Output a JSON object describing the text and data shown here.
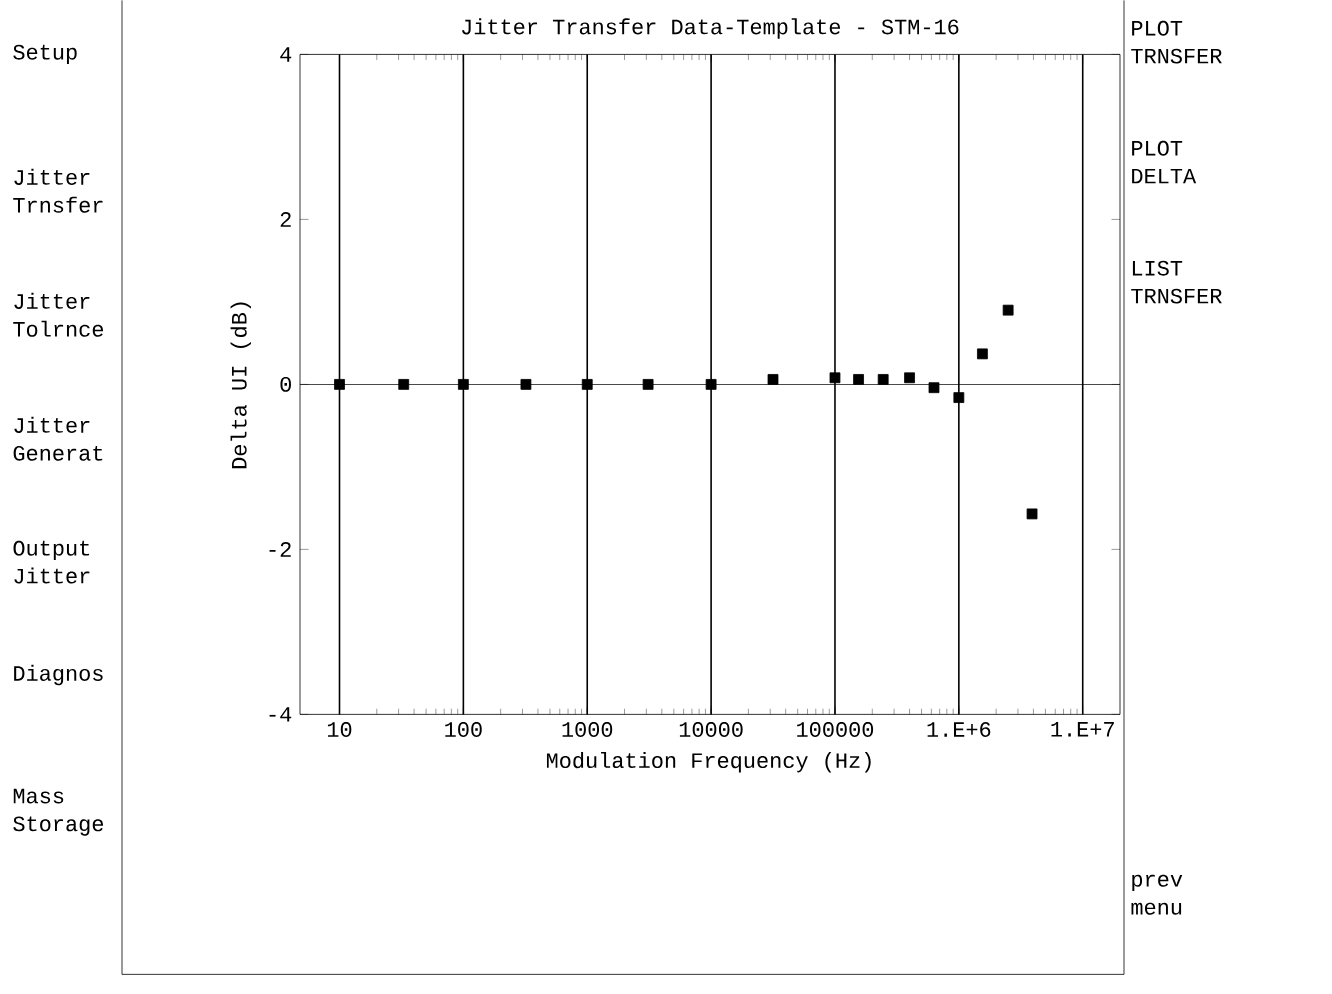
{
  "chart_data": {
    "type": "scatter",
    "title": "Jitter Transfer Data-Template - STM-16",
    "xlabel": "Modulation Frequency (Hz)",
    "ylabel": "Delta UI (dB)",
    "log": "x",
    "xlim": [
      4.8,
      20000000
    ],
    "ylim": [
      -4,
      4
    ],
    "xticks": [
      10,
      100,
      1000,
      10000,
      100000,
      {
        "value": 1000000,
        "label": "1.E+6"
      },
      {
        "value": 10000000,
        "label": "1.E+7"
      }
    ],
    "yticks": [
      -4,
      -2,
      0,
      2,
      4
    ],
    "grid": "x",
    "marker": "square",
    "ref_lines": [
      {
        "axis": "y",
        "value": 0,
        "label": null
      }
    ],
    "series": [
      {
        "color": "#000000",
        "x": [
          10,
          33,
          100,
          320,
          1000,
          3100,
          10000,
          31600,
          100000,
          155000,
          245000,
          400000,
          630000,
          1000000,
          1550000,
          2500000,
          3900000
        ],
        "values": [
          0,
          0,
          0,
          0,
          0,
          0,
          0,
          0.06,
          0.08,
          0.06,
          0.06,
          0.08,
          -0.04,
          -0.16,
          0.37,
          0.9,
          -1.57
        ]
      }
    ],
    "annotations": [
      "Setup",
      "Jitter Trnsfer",
      "Jitter Tolrnce",
      "Jitter Generat",
      "Output Jitter",
      "Diagnos",
      "Mass Storage",
      "PLOT TRNSFER",
      "PLOT DELTA",
      "LIST TRNSFER",
      "prev menu"
    ]
  }
}
